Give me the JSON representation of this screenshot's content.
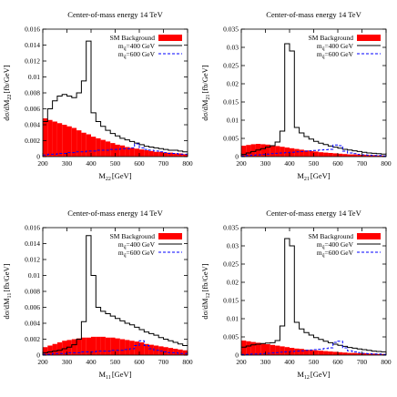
{
  "chart_data": [
    {
      "type": "line",
      "title": "Center-of-mass energy 14 TeV",
      "ylabel": "dσ/dM_22 [fb/GeV]",
      "ylabel_main": "dσ/dM",
      "ylabel_sub": "22",
      "ylabel_unit": "[fb/GeV]",
      "xlabel": "M_22 [GeV]",
      "xlabel_main": "M",
      "xlabel_sub": "22",
      "xlabel_unit": "[GeV]",
      "xlim": [
        200,
        800
      ],
      "ylim": [
        0,
        0.016
      ],
      "xticks": [
        "200",
        "300",
        "400",
        "500",
        "600",
        "700",
        "800"
      ],
      "yticks": [
        "0",
        "0.002",
        "0.004",
        "0.006",
        "0.008",
        "0.01",
        "0.012",
        "0.014",
        "0.016"
      ],
      "legend_position": "top-right",
      "legend": [
        {
          "label": "SM Background",
          "style": "filled-red"
        },
        {
          "label_main": "m",
          "label_sub": "q̃",
          "label_rest": "=400 GeV",
          "style": "solid-black"
        },
        {
          "label_main": "m",
          "label_sub": "q̃",
          "label_rest": "=600 GeV",
          "style": "dashed-blue"
        }
      ],
      "bin_edges": [
        200,
        220,
        240,
        260,
        280,
        300,
        320,
        340,
        360,
        380,
        400,
        420,
        440,
        460,
        480,
        500,
        520,
        540,
        560,
        580,
        600,
        620,
        640,
        660,
        680,
        700,
        720,
        740,
        760,
        780,
        800
      ],
      "series": [
        {
          "key": "bkg",
          "values": [
            0.0048,
            0.0046,
            0.0044,
            0.0042,
            0.004,
            0.0038,
            0.0036,
            0.0033,
            0.003,
            0.0028,
            0.0025,
            0.0023,
            0.0021,
            0.0019,
            0.0017,
            0.0015,
            0.0014,
            0.0012,
            0.0011,
            0.001,
            0.0009,
            0.0008,
            0.0007,
            0.0006,
            0.0006,
            0.0005,
            0.0005,
            0.0004,
            0.0004,
            0.0003
          ]
        },
        {
          "key": "m400",
          "values": [
            0.0044,
            0.006,
            0.007,
            0.0076,
            0.0078,
            0.0076,
            0.0074,
            0.008,
            0.0095,
            0.0145,
            0.0055,
            0.0044,
            0.0038,
            0.0033,
            0.0029,
            0.0026,
            0.0023,
            0.0021,
            0.0019,
            0.0017,
            0.0015,
            0.0013,
            0.0012,
            0.0011,
            0.001,
            0.0009,
            0.0008,
            0.0008,
            0.0007,
            0.0006
          ]
        },
        {
          "key": "m600",
          "values": [
            0.0002,
            0.0003,
            0.0003,
            0.0004,
            0.0004,
            0.0005,
            0.0005,
            0.0006,
            0.0006,
            0.0007,
            0.0007,
            0.0008,
            0.0008,
            0.0008,
            0.0009,
            0.0009,
            0.001,
            0.001,
            0.0011,
            0.0016,
            0.0011,
            0.0009,
            0.0008,
            0.0007,
            0.0006,
            0.0005,
            0.0004,
            0.0004,
            0.0003,
            0.0003
          ]
        }
      ]
    },
    {
      "type": "line",
      "title": "Center-of-mass energy 14 TeV",
      "ylabel": "dσ/dM_21 [fb/GeV]",
      "ylabel_main": "dσ/dM",
      "ylabel_sub": "21",
      "ylabel_unit": "[fb/GeV]",
      "xlabel": "M_21 [GeV]",
      "xlabel_main": "M",
      "xlabel_sub": "21",
      "xlabel_unit": "[GeV]",
      "xlim": [
        200,
        800
      ],
      "ylim": [
        0,
        0.035
      ],
      "xticks": [
        "200",
        "300",
        "400",
        "500",
        "600",
        "700",
        "800"
      ],
      "yticks": [
        "0",
        "0.005",
        "0.01",
        "0.015",
        "0.02",
        "0.025",
        "0.03",
        "0.035"
      ],
      "legend_position": "top-right",
      "legend": [
        {
          "label": "SM Background",
          "style": "filled-red"
        },
        {
          "label_main": "m",
          "label_sub": "q̃",
          "label_rest": "=400 GeV",
          "style": "solid-black"
        },
        {
          "label_main": "m",
          "label_sub": "q̃",
          "label_rest": "=600 GeV",
          "style": "dashed-blue"
        }
      ],
      "bin_edges": [
        200,
        220,
        240,
        260,
        280,
        300,
        320,
        340,
        360,
        380,
        400,
        420,
        440,
        460,
        480,
        500,
        520,
        540,
        560,
        580,
        600,
        620,
        640,
        660,
        680,
        700,
        720,
        740,
        760,
        780,
        800
      ],
      "series": [
        {
          "key": "bkg",
          "values": [
            0.003,
            0.0032,
            0.0034,
            0.0035,
            0.0034,
            0.0033,
            0.0031,
            0.0029,
            0.0027,
            0.0025,
            0.0023,
            0.0021,
            0.0019,
            0.0017,
            0.0015,
            0.0014,
            0.0012,
            0.0011,
            0.001,
            0.0009,
            0.0008,
            0.0007,
            0.0006,
            0.0006,
            0.0005,
            0.0005,
            0.0004,
            0.0004,
            0.0003,
            0.0003
          ]
        },
        {
          "key": "m400",
          "values": [
            0.0006,
            0.001,
            0.0014,
            0.0018,
            0.0022,
            0.0026,
            0.003,
            0.004,
            0.007,
            0.031,
            0.029,
            0.008,
            0.0065,
            0.0055,
            0.0048,
            0.0042,
            0.0037,
            0.0033,
            0.0029,
            0.0026,
            0.0023,
            0.002,
            0.0018,
            0.0016,
            0.0014,
            0.0012,
            0.001,
            0.0009,
            0.0008,
            0.0007
          ]
        },
        {
          "key": "m600",
          "values": [
            0.0002,
            0.0003,
            0.0004,
            0.0005,
            0.0006,
            0.0007,
            0.0008,
            0.0009,
            0.001,
            0.0011,
            0.0012,
            0.0013,
            0.0014,
            0.0015,
            0.0016,
            0.0017,
            0.0018,
            0.0019,
            0.002,
            0.0032,
            0.003,
            0.0015,
            0.001,
            0.0008,
            0.0006,
            0.0005,
            0.0004,
            0.0003,
            0.0003,
            0.0002
          ]
        }
      ]
    },
    {
      "type": "line",
      "title": "Center-of-mass energy 14 TeV",
      "ylabel": "dσ/dM_11 [fb/GeV]",
      "ylabel_main": "dσ/dM",
      "ylabel_sub": "11",
      "ylabel_unit": "[fb/GeV]",
      "xlabel": "M_11 [GeV]",
      "xlabel_main": "M",
      "xlabel_sub": "11",
      "xlabel_unit": "[GeV]",
      "xlim": [
        200,
        800
      ],
      "ylim": [
        0,
        0.016
      ],
      "xticks": [
        "200",
        "300",
        "400",
        "500",
        "600",
        "700",
        "800"
      ],
      "yticks": [
        "0",
        "0.002",
        "0.004",
        "0.006",
        "0.008",
        "0.01",
        "0.012",
        "0.014",
        "0.016"
      ],
      "legend_position": "top-right",
      "legend": [
        {
          "label": "SM Background",
          "style": "filled-red"
        },
        {
          "label_main": "m",
          "label_sub": "q̃",
          "label_rest": "=400 GeV",
          "style": "solid-black"
        },
        {
          "label_main": "m",
          "label_sub": "q̃",
          "label_rest": "=600 GeV",
          "style": "dashed-blue"
        }
      ],
      "bin_edges": [
        200,
        220,
        240,
        260,
        280,
        300,
        320,
        340,
        360,
        380,
        400,
        420,
        440,
        460,
        480,
        500,
        520,
        540,
        560,
        580,
        600,
        620,
        640,
        660,
        680,
        700,
        720,
        740,
        760,
        780,
        800
      ],
      "series": [
        {
          "key": "bkg",
          "values": [
            0.001,
            0.0012,
            0.0014,
            0.0016,
            0.0018,
            0.0019,
            0.002,
            0.0021,
            0.0022,
            0.0022,
            0.0023,
            0.0023,
            0.0023,
            0.0022,
            0.0022,
            0.0021,
            0.002,
            0.0019,
            0.0018,
            0.0017,
            0.0016,
            0.0014,
            0.0013,
            0.0012,
            0.0011,
            0.001,
            0.0009,
            0.0008,
            0.0007,
            0.0006
          ]
        },
        {
          "key": "m400",
          "values": [
            0.0003,
            0.0004,
            0.0005,
            0.0006,
            0.0008,
            0.001,
            0.0013,
            0.002,
            0.0042,
            0.015,
            0.01,
            0.006,
            0.0055,
            0.0052,
            0.0049,
            0.0046,
            0.0043,
            0.004,
            0.0038,
            0.0035,
            0.0032,
            0.0029,
            0.0027,
            0.0025,
            0.0022,
            0.002,
            0.0018,
            0.0016,
            0.0014,
            0.0012
          ]
        },
        {
          "key": "m600",
          "values": [
            0.0001,
            0.0001,
            0.0002,
            0.0002,
            0.0002,
            0.0003,
            0.0003,
            0.0003,
            0.0004,
            0.0004,
            0.0004,
            0.0005,
            0.0005,
            0.0005,
            0.0006,
            0.0006,
            0.0006,
            0.0007,
            0.0008,
            0.0012,
            0.0018,
            0.0012,
            0.0008,
            0.0006,
            0.0005,
            0.0004,
            0.0003,
            0.0003,
            0.0002,
            0.0002
          ]
        }
      ]
    },
    {
      "type": "line",
      "title": "Center-of-mass energy 14 TeV",
      "ylabel": "dσ/dM_12 [fb/GeV]",
      "ylabel_main": "dσ/dM",
      "ylabel_sub": "12",
      "ylabel_unit": "[fb/GeV]",
      "xlabel": "M_12 [GeV]",
      "xlabel_main": "M",
      "xlabel_sub": "12",
      "xlabel_unit": "[GeV]",
      "xlim": [
        200,
        800
      ],
      "ylim": [
        0,
        0.035
      ],
      "xticks": [
        "200",
        "300",
        "400",
        "500",
        "600",
        "700",
        "800"
      ],
      "yticks": [
        "0",
        "0.005",
        "0.01",
        "0.015",
        "0.02",
        "0.025",
        "0.03",
        "0.035"
      ],
      "legend_position": "top-right",
      "legend": [
        {
          "label": "SM Background",
          "style": "filled-red"
        },
        {
          "label_main": "m",
          "label_sub": "q̃",
          "label_rest": "=400 GeV",
          "style": "solid-black"
        },
        {
          "label_main": "m",
          "label_sub": "q̃",
          "label_rest": "=600 GeV",
          "style": "dashed-blue"
        }
      ],
      "bin_edges": [
        200,
        220,
        240,
        260,
        280,
        300,
        320,
        340,
        360,
        380,
        400,
        420,
        440,
        460,
        480,
        500,
        520,
        540,
        560,
        580,
        600,
        620,
        640,
        660,
        680,
        700,
        720,
        740,
        760,
        780,
        800
      ],
      "series": [
        {
          "key": "bkg",
          "values": [
            0.004,
            0.0038,
            0.0036,
            0.0034,
            0.0032,
            0.003,
            0.0028,
            0.0026,
            0.0024,
            0.0022,
            0.002,
            0.0018,
            0.0017,
            0.0015,
            0.0014,
            0.0013,
            0.0012,
            0.0011,
            0.001,
            0.0009,
            0.0008,
            0.0007,
            0.0006,
            0.0006,
            0.0005,
            0.0005,
            0.0004,
            0.0004,
            0.0003,
            0.0003
          ]
        },
        {
          "key": "m400",
          "values": [
            0.0022,
            0.0025,
            0.0028,
            0.003,
            0.0032,
            0.0033,
            0.0034,
            0.004,
            0.008,
            0.032,
            0.03,
            0.009,
            0.0072,
            0.0062,
            0.0055,
            0.0048,
            0.0043,
            0.0038,
            0.0034,
            0.003,
            0.0027,
            0.0024,
            0.0021,
            0.0019,
            0.0017,
            0.0015,
            0.0013,
            0.0011,
            0.001,
            0.0009
          ]
        },
        {
          "key": "m600",
          "values": [
            0.0002,
            0.0002,
            0.0003,
            0.0003,
            0.0004,
            0.0005,
            0.0006,
            0.0007,
            0.0008,
            0.0009,
            0.001,
            0.0011,
            0.0012,
            0.0013,
            0.0014,
            0.0015,
            0.0016,
            0.0018,
            0.002,
            0.0035,
            0.0038,
            0.002,
            0.0012,
            0.0009,
            0.0007,
            0.0005,
            0.0004,
            0.0003,
            0.0003,
            0.0002
          ]
        }
      ]
    }
  ],
  "colors": {
    "background_fill": "#ff0000",
    "signal_400": "#000000",
    "signal_600": "#0000ff",
    "axis": "#000000"
  }
}
